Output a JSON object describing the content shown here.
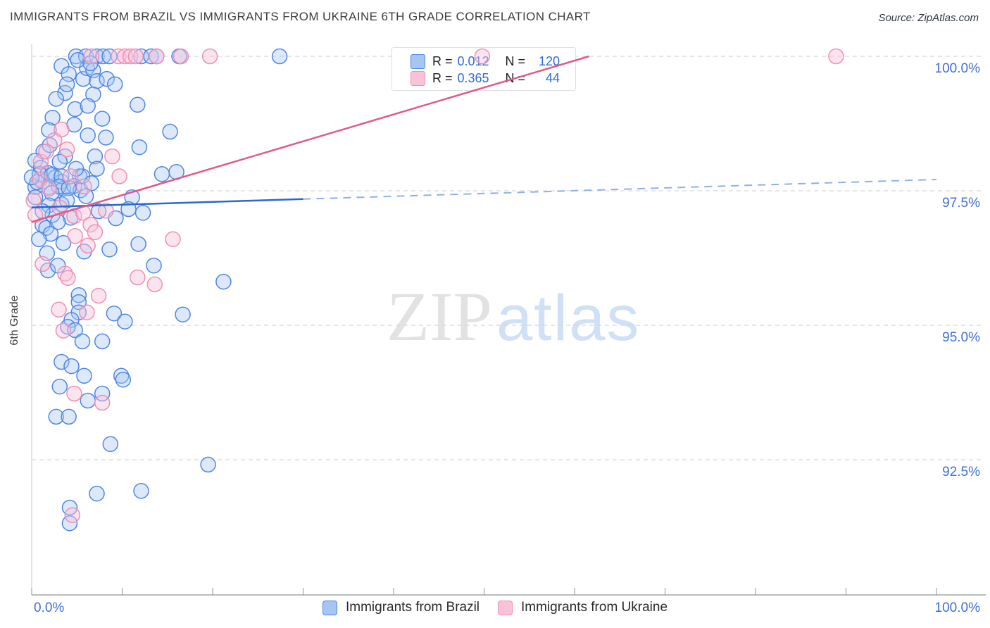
{
  "header": {
    "title": "IMMIGRANTS FROM BRAZIL VS IMMIGRANTS FROM UKRAINE 6TH GRADE CORRELATION CHART",
    "source": "Source: ZipAtlas.com"
  },
  "watermark": {
    "zip": "ZIP",
    "atlas": "atlas"
  },
  "stats_box": {
    "rows": [
      {
        "series": "brazil",
        "r_label": "R =",
        "r_value": "0.012",
        "n_label": "N =",
        "n_value": "120"
      },
      {
        "series": "ukraine",
        "r_label": "R =",
        "r_value": "0.365",
        "n_label": "N =",
        "n_value": "44"
      }
    ]
  },
  "axes": {
    "y_label": "6th Grade",
    "y_ticks": [
      {
        "value": 100.0,
        "label": "100.0%"
      },
      {
        "value": 97.5,
        "label": "97.5%"
      },
      {
        "value": 95.0,
        "label": "95.0%"
      },
      {
        "value": 92.5,
        "label": "92.5%"
      }
    ],
    "x_left_label": "0.0%",
    "x_right_label": "100.0%"
  },
  "legend": {
    "items": [
      {
        "label": "Immigrants from Brazil",
        "color": "#4e86e4",
        "fill": "#abc9f4"
      },
      {
        "label": "Immigrants from Ukraine",
        "color": "#f291b4",
        "fill": "#f9c2d8"
      }
    ]
  },
  "chart_data": {
    "type": "scatter",
    "title": "Immigrants from Brazil vs Immigrants from Ukraine 6th Grade Correlation Chart",
    "xlabel": "",
    "ylabel": "6th Grade",
    "x_range": [
      0,
      100
    ],
    "y_tick_values": [
      100.0,
      97.5,
      95.0,
      92.5
    ],
    "x_tick_values": [
      0,
      10,
      20,
      30,
      40,
      50,
      60,
      70,
      80,
      90,
      100
    ],
    "grid": true,
    "legend_position": "bottom",
    "series": [
      {
        "name": "Immigrants from Brazil",
        "r": 0.012,
        "n": 120,
        "points": [
          [
            4.9,
            100
          ],
          [
            6,
            100
          ],
          [
            7.2,
            100
          ],
          [
            7.9,
            100
          ],
          [
            8.6,
            100
          ],
          [
            12.1,
            100
          ],
          [
            13.2,
            100
          ],
          [
            13.8,
            100
          ],
          [
            16.3,
            100
          ],
          [
            27.4,
            100
          ],
          [
            3.3,
            99.82
          ],
          [
            4.1,
            99.67
          ],
          [
            5.7,
            99.58
          ],
          [
            6.1,
            99.78
          ],
          [
            6.8,
            99.74
          ],
          [
            7.2,
            99.54
          ],
          [
            3.7,
            99.32
          ],
          [
            6.8,
            99.29
          ],
          [
            4.8,
            99.02
          ],
          [
            6.2,
            99.08
          ],
          [
            11.7,
            99.1
          ],
          [
            7.8,
            98.84
          ],
          [
            2.3,
            98.86
          ],
          [
            1.9,
            98.63
          ],
          [
            4.7,
            98.73
          ],
          [
            6.2,
            98.53
          ],
          [
            8.2,
            98.49
          ],
          [
            15.3,
            98.6
          ],
          [
            11.9,
            98.31
          ],
          [
            1.3,
            98.23
          ],
          [
            14.4,
            97.81
          ],
          [
            16,
            97.85
          ],
          [
            7,
            98.14
          ],
          [
            5.3,
            97.77
          ],
          [
            7.2,
            97.91
          ],
          [
            5.1,
            99.93
          ],
          [
            6.5,
            99.87
          ],
          [
            8.3,
            99.58
          ],
          [
            9.2,
            99.48
          ],
          [
            3.9,
            99.48
          ],
          [
            2.7,
            99.21
          ],
          [
            2,
            98.35
          ],
          [
            0.4,
            98.06
          ],
          [
            1,
            97.93
          ],
          [
            1.8,
            97.83
          ],
          [
            2.6,
            97.75
          ],
          [
            3.3,
            97.67
          ],
          [
            1.2,
            97.67
          ],
          [
            0.4,
            97.57
          ],
          [
            1.9,
            97.57
          ],
          [
            3.5,
            97.54
          ],
          [
            4.7,
            97.59
          ],
          [
            5.4,
            97.51
          ],
          [
            3.7,
            98.14
          ],
          [
            0.9,
            97.81
          ],
          [
            2.2,
            97.79
          ],
          [
            3.3,
            97.77
          ],
          [
            5.6,
            97.77
          ],
          [
            0.6,
            97.66
          ],
          [
            3,
            97.58
          ],
          [
            4.1,
            97.55
          ],
          [
            2.2,
            97.46
          ],
          [
            6.6,
            97.64
          ],
          [
            0,
            97.75
          ],
          [
            4.9,
            97.91
          ],
          [
            3.1,
            98.04
          ],
          [
            0.4,
            97.38
          ],
          [
            1.9,
            97.23
          ],
          [
            3.3,
            97.25
          ],
          [
            6,
            97.4
          ],
          [
            11.1,
            97.38
          ],
          [
            1.2,
            96.86
          ],
          [
            1.6,
            96.81
          ],
          [
            2.1,
            96.7
          ],
          [
            2.3,
            97.05
          ],
          [
            4.3,
            97
          ],
          [
            2.9,
            96.92
          ],
          [
            10.7,
            97.16
          ],
          [
            12.3,
            97.09
          ],
          [
            5.8,
            96.37
          ],
          [
            8.6,
            96.41
          ],
          [
            11.8,
            96.51
          ],
          [
            1.7,
            96.34
          ],
          [
            1.8,
            96.02
          ],
          [
            2.9,
            96.11
          ],
          [
            13.5,
            96.11
          ],
          [
            21.2,
            95.81
          ],
          [
            5.2,
            95.56
          ],
          [
            5.2,
            95.43
          ],
          [
            5.2,
            95.24
          ],
          [
            4.4,
            95.1
          ],
          [
            9.1,
            95.22
          ],
          [
            10.3,
            95.07
          ],
          [
            16.7,
            95.2
          ],
          [
            4,
            94.97
          ],
          [
            4.8,
            94.91
          ],
          [
            5.6,
            94.7
          ],
          [
            7.8,
            94.7
          ],
          [
            1.2,
            97.12
          ],
          [
            3.9,
            97.32
          ],
          [
            7.4,
            97.12
          ],
          [
            9.3,
            96.99
          ],
          [
            0.8,
            96.6
          ],
          [
            3.5,
            96.53
          ],
          [
            3.3,
            94.32
          ],
          [
            4.4,
            94.24
          ],
          [
            5.8,
            94.06
          ],
          [
            9.9,
            94.06
          ],
          [
            10.1,
            93.99
          ],
          [
            3.1,
            93.86
          ],
          [
            7.8,
            93.73
          ],
          [
            6.2,
            93.6
          ],
          [
            2.7,
            93.3
          ],
          [
            4.1,
            93.3
          ],
          [
            8.7,
            92.79
          ],
          [
            19.5,
            92.41
          ],
          [
            7.2,
            91.87
          ],
          [
            12.1,
            91.92
          ],
          [
            4.2,
            91.61
          ],
          [
            4.2,
            91.32
          ]
        ]
      },
      {
        "name": "Immigrants from Ukraine",
        "r": 0.365,
        "n": 44,
        "points": [
          [
            6.6,
            100
          ],
          [
            9.6,
            100
          ],
          [
            10.3,
            100
          ],
          [
            10.9,
            100
          ],
          [
            11.5,
            100
          ],
          [
            13.8,
            100
          ],
          [
            16.5,
            100
          ],
          [
            19.7,
            100
          ],
          [
            49.8,
            100
          ],
          [
            88.9,
            100
          ],
          [
            3.3,
            98.64
          ],
          [
            2.5,
            98.44
          ],
          [
            8.9,
            98.14
          ],
          [
            1,
            98.04
          ],
          [
            0.9,
            97.71
          ],
          [
            1.9,
            97.54
          ],
          [
            3.9,
            98.27
          ],
          [
            0.4,
            97.05
          ],
          [
            4.7,
            97.03
          ],
          [
            5.7,
            97.09
          ],
          [
            8.2,
            97.13
          ],
          [
            4.8,
            96.66
          ],
          [
            6.5,
            96.87
          ],
          [
            6.2,
            96.48
          ],
          [
            15.6,
            96.6
          ],
          [
            3.7,
            95.96
          ],
          [
            4,
            95.88
          ],
          [
            11.7,
            95.89
          ],
          [
            13.6,
            95.76
          ],
          [
            3,
            95.29
          ],
          [
            6.1,
            95.24
          ],
          [
            4.7,
            93.73
          ],
          [
            7.8,
            93.56
          ],
          [
            4.5,
            91.47
          ],
          [
            1.6,
            98.23
          ],
          [
            4.3,
            97.77
          ],
          [
            5.8,
            97.58
          ],
          [
            0.2,
            97.32
          ],
          [
            3.1,
            97.19
          ],
          [
            7,
            96.73
          ],
          [
            1.2,
            96.14
          ],
          [
            7.4,
            95.55
          ],
          [
            3.5,
            94.9
          ],
          [
            9.7,
            97.77
          ]
        ]
      }
    ],
    "trend_lines": [
      {
        "series": "Immigrants from Brazil",
        "x1": 0,
        "y1": 97.19,
        "x2": 100,
        "y2": 97.71,
        "solid_until_x": 30,
        "solid_color": "#2a66d4",
        "dash_color": "#8fb0e8"
      },
      {
        "series": "Immigrants from Ukraine",
        "x1": 0,
        "y1": 96.92,
        "x2": 61.6,
        "y2": 100.0,
        "solid_color": "#df5a85"
      }
    ],
    "colors": {
      "brazil_stroke": "#4e86e4",
      "ukraine_stroke": "#ef8fb3",
      "tick_label": "#3e6fd4",
      "gridline": "#d8d8d8"
    }
  }
}
